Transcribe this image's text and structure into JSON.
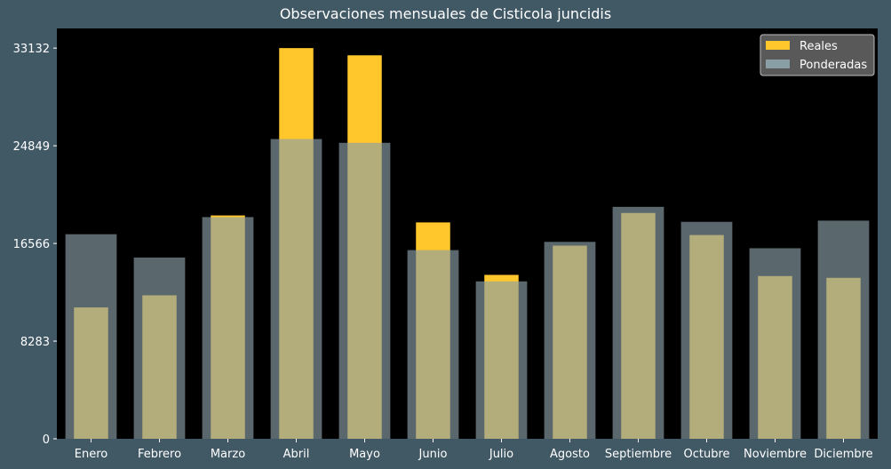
{
  "chart_data": {
    "type": "bar",
    "title": "Observaciones mensuales de Cisticola juncidis",
    "xlabel": "",
    "ylabel": "",
    "categories": [
      "Enero",
      "Febrero",
      "Marzo",
      "Abril",
      "Mayo",
      "Junio",
      "Julio",
      "Agosto",
      "Septiembre",
      "Octubre",
      "Noviembre",
      "Diciembre"
    ],
    "series": [
      {
        "name": "Reales",
        "color": "#ffc72c",
        "values": [
          11140,
          12170,
          18940,
          33132,
          32520,
          18350,
          13900,
          16380,
          19150,
          17280,
          13800,
          13650
        ]
      },
      {
        "name": "Ponderadas",
        "color": "#8a9ea6",
        "values": [
          17350,
          15370,
          18800,
          25420,
          25100,
          16000,
          13350,
          16700,
          19670,
          18400,
          16160,
          18500
        ]
      }
    ],
    "yticks": [
      0,
      8283,
      16566,
      24849,
      33132
    ],
    "ylim": [
      0,
      34800
    ],
    "legend_placement": "top-right",
    "grid": false
  }
}
